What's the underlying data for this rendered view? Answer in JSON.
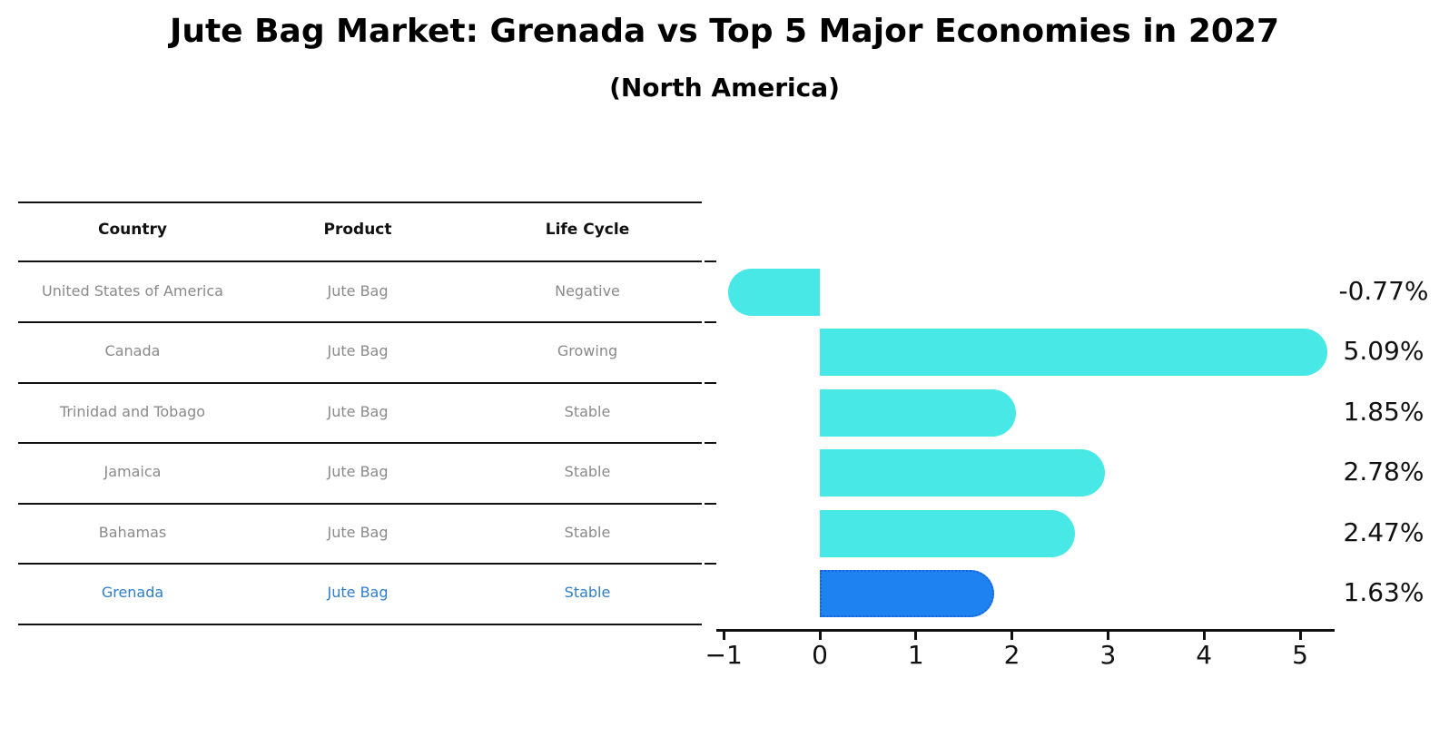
{
  "title": "Jute Bag Market: Grenada vs Top 5 Major Economies in 2027",
  "subtitle": "(North America)",
  "table": {
    "headers": [
      "Country",
      "Product",
      "Life Cycle"
    ],
    "rows": [
      {
        "country": "United States of America",
        "product": "Jute Bag",
        "life_cycle": "Negative",
        "highlight": false
      },
      {
        "country": "Canada",
        "product": "Jute Bag",
        "life_cycle": "Growing",
        "highlight": false
      },
      {
        "country": "Trinidad and Tobago",
        "product": "Jute Bag",
        "life_cycle": "Stable",
        "highlight": false
      },
      {
        "country": "Jamaica",
        "product": "Jute Bag",
        "life_cycle": "Stable",
        "highlight": false
      },
      {
        "country": "Bahamas",
        "product": "Jute Bag",
        "life_cycle": "Stable",
        "highlight": false
      },
      {
        "country": "Grenada",
        "product": "Jute Bag",
        "life_cycle": "Stable",
        "highlight": true
      }
    ],
    "header_text_color": "#111111",
    "row_text_color": "#8a8a8a",
    "highlight_text_color": "#2e7ec9",
    "rule_color": "#111111"
  },
  "chart_data": {
    "type": "bar",
    "orientation": "horizontal",
    "title": "Jute Bag Market: Grenada vs Top 5 Major Economies in 2027",
    "subtitle": "(North America)",
    "categories": [
      "United States of America",
      "Canada",
      "Trinidad and Tobago",
      "Jamaica",
      "Bahamas",
      "Grenada"
    ],
    "values": [
      -0.77,
      5.09,
      1.85,
      2.78,
      2.47,
      1.63
    ],
    "value_labels": [
      "-0.77%",
      "5.09%",
      "1.85%",
      "2.78%",
      "2.47%",
      "1.63%"
    ],
    "x_ticks": [
      -1,
      0,
      1,
      2,
      3,
      4,
      5
    ],
    "x_tick_labels": [
      "−1",
      "0",
      "1",
      "2",
      "3",
      "4",
      "5"
    ],
    "xlim": [
      -1.1,
      5.35
    ],
    "grid": false,
    "legend": "none",
    "bar_color": "#48e8e6",
    "highlight_index": 5,
    "highlight_bar_color": "#1e82f0",
    "highlight_bar_border_color": "#1565d8",
    "axis_color": "#111111",
    "value_label_color": "#111111"
  }
}
